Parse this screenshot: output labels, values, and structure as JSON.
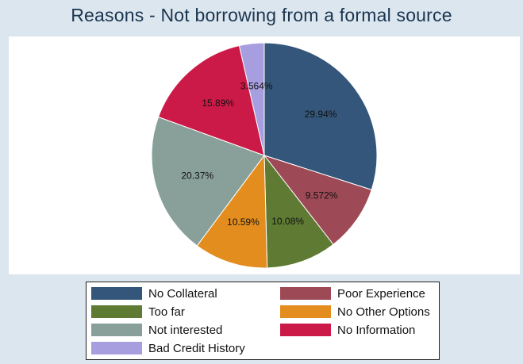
{
  "chart_data": {
    "type": "pie",
    "title": "Reasons - Not borrowing from a formal source",
    "slices": [
      {
        "label": "No Collateral",
        "value": 29.94,
        "display": "29.94%",
        "color": "#34567a"
      },
      {
        "label": "Poor Experience",
        "value": 9.572,
        "display": "9.572%",
        "color": "#9e4a56"
      },
      {
        "label": "Too far",
        "value": 10.08,
        "display": "10.08%",
        "color": "#5e7a33"
      },
      {
        "label": "No Other Options",
        "value": 10.59,
        "display": "10.59%",
        "color": "#e38d1e"
      },
      {
        "label": "Not interested",
        "value": 20.37,
        "display": "20.37%",
        "color": "#88a099"
      },
      {
        "label": "No Information",
        "value": 15.89,
        "display": "15.89%",
        "color": "#cc1a48"
      },
      {
        "label": "Bad Credit History",
        "value": 3.564,
        "display": "3.564%",
        "color": "#a79ee0"
      }
    ],
    "legend": {
      "placement": "bottom",
      "columns": 2,
      "items": [
        {
          "label": "No Collateral",
          "color": "#34567a"
        },
        {
          "label": "Poor Experience",
          "color": "#9e4a56"
        },
        {
          "label": "Too far",
          "color": "#5e7a33"
        },
        {
          "label": "No Other Options",
          "color": "#e38d1e"
        },
        {
          "label": "Not interested",
          "color": "#88a099"
        },
        {
          "label": "No Information",
          "color": "#cc1a48"
        },
        {
          "label": "Bad Credit History",
          "color": "#a79ee0"
        }
      ]
    }
  }
}
